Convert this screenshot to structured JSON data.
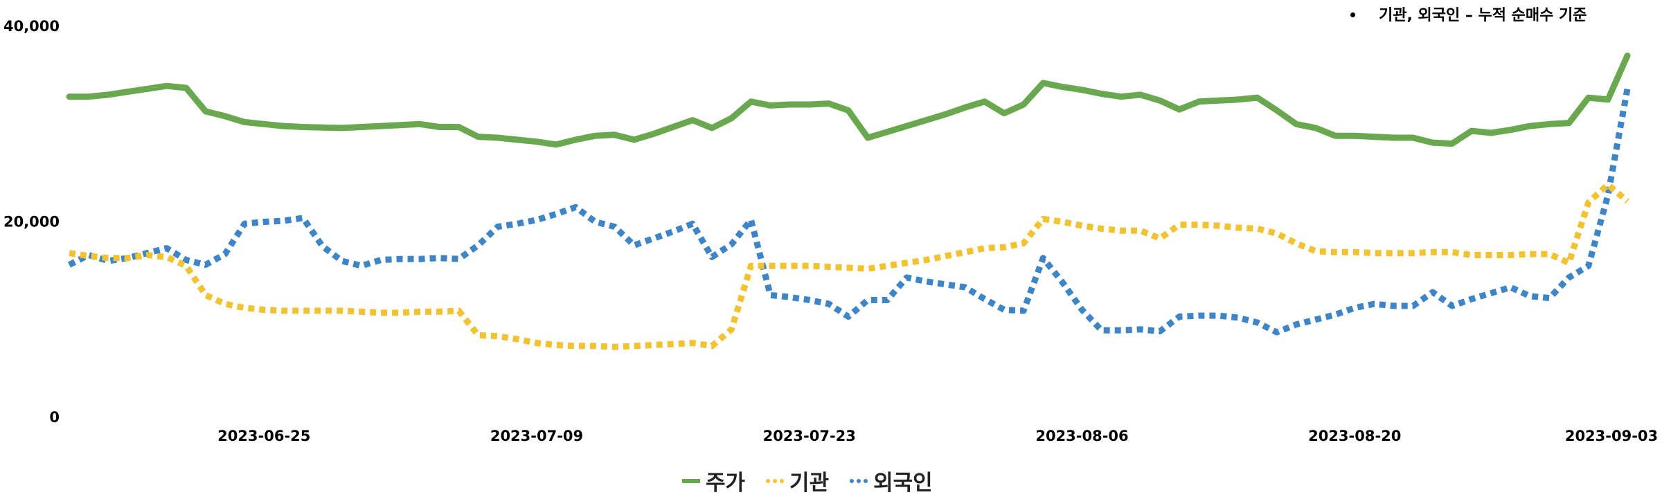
{
  "chart_data": {
    "type": "line",
    "annotation": "기관, 외국인 – 누적 순매수 기준",
    "ylim": [
      0,
      40000
    ],
    "y_ticks": [
      "0",
      "20,000",
      "40,000"
    ],
    "x_ticks": [
      "2023-06-25",
      "2023-07-09",
      "2023-07-23",
      "2023-08-06",
      "2023-08-20",
      "2023-09-03"
    ],
    "x_range": [
      "2023-06-15",
      "2023-09-03"
    ],
    "legend_position": "bottom",
    "x": [
      "2023-06-15",
      "2023-06-16",
      "2023-06-17",
      "2023-06-18",
      "2023-06-19",
      "2023-06-20",
      "2023-06-21",
      "2023-06-22",
      "2023-06-23",
      "2023-06-24",
      "2023-06-25",
      "2023-06-26",
      "2023-06-27",
      "2023-06-28",
      "2023-06-29",
      "2023-06-30",
      "2023-07-01",
      "2023-07-02",
      "2023-07-03",
      "2023-07-04",
      "2023-07-05",
      "2023-07-06",
      "2023-07-07",
      "2023-07-08",
      "2023-07-09",
      "2023-07-10",
      "2023-07-11",
      "2023-07-12",
      "2023-07-13",
      "2023-07-14",
      "2023-07-15",
      "2023-07-16",
      "2023-07-17",
      "2023-07-18",
      "2023-07-19",
      "2023-07-20",
      "2023-07-21",
      "2023-07-22",
      "2023-07-23",
      "2023-07-24",
      "2023-07-25",
      "2023-07-26",
      "2023-07-27",
      "2023-07-28",
      "2023-07-29",
      "2023-07-30",
      "2023-07-31",
      "2023-08-01",
      "2023-08-02",
      "2023-08-03",
      "2023-08-04",
      "2023-08-05",
      "2023-08-06",
      "2023-08-07",
      "2023-08-08",
      "2023-08-09",
      "2023-08-10",
      "2023-08-11",
      "2023-08-12",
      "2023-08-13",
      "2023-08-14",
      "2023-08-15",
      "2023-08-16",
      "2023-08-17",
      "2023-08-18",
      "2023-08-19",
      "2023-08-20",
      "2023-08-21",
      "2023-08-22",
      "2023-08-23",
      "2023-08-24",
      "2023-08-25",
      "2023-08-26",
      "2023-08-27",
      "2023-08-28",
      "2023-08-29",
      "2023-08-30",
      "2023-08-31",
      "2023-09-01",
      "2023-09-02",
      "2023-09-03"
    ],
    "series": [
      {
        "name": "주가",
        "color": "#6aa84f",
        "dash": "solid",
        "values": [
          32800,
          32800,
          33000,
          33300,
          33600,
          33900,
          33700,
          31300,
          30800,
          30200,
          30000,
          29800,
          29700,
          29650,
          29600,
          29700,
          29800,
          29900,
          30000,
          29700,
          29700,
          28700,
          28600,
          28400,
          28200,
          27900,
          28400,
          28800,
          28900,
          28400,
          29000,
          29700,
          30400,
          29600,
          30600,
          32300,
          31900,
          32000,
          32000,
          32100,
          31400,
          28600,
          29200,
          29800,
          30400,
          31000,
          31700,
          32300,
          31100,
          32000,
          34200,
          33800,
          33500,
          33100,
          32800,
          33000,
          32400,
          31500,
          32300,
          32400,
          32500,
          32700,
          31400,
          30000,
          29600,
          28800,
          28800,
          28700,
          28600,
          28600,
          28100,
          28000,
          29300,
          29100,
          29400,
          29800,
          30000,
          30100,
          32700,
          32500,
          37000
        ]
      },
      {
        "name": "기관",
        "color": "#f1c232",
        "dash": "dot",
        "values": [
          16800,
          16500,
          16300,
          16300,
          16600,
          16400,
          15500,
          12500,
          11600,
          11200,
          11000,
          10900,
          10900,
          10900,
          10900,
          10800,
          10700,
          10700,
          10800,
          10800,
          10900,
          8400,
          8300,
          8000,
          7600,
          7400,
          7300,
          7300,
          7200,
          7300,
          7400,
          7500,
          7600,
          7300,
          9000,
          15500,
          15500,
          15500,
          15500,
          15400,
          15300,
          15200,
          15500,
          15800,
          16100,
          16500,
          16900,
          17300,
          17400,
          17800,
          20300,
          20000,
          19600,
          19300,
          19100,
          19100,
          18300,
          19700,
          19700,
          19600,
          19400,
          19300,
          18800,
          17800,
          17000,
          16900,
          16900,
          16800,
          16800,
          16800,
          16900,
          16900,
          16600,
          16600,
          16600,
          16700,
          16700,
          15800,
          22000,
          23800,
          22100
        ]
      },
      {
        "name": "외국인",
        "color": "#3d85c6",
        "dash": "dot",
        "values": [
          15600,
          16600,
          16000,
          16300,
          16800,
          17300,
          16100,
          15600,
          16700,
          19800,
          20000,
          20100,
          20400,
          17500,
          16000,
          15500,
          16100,
          16200,
          16200,
          16300,
          16200,
          17600,
          19500,
          19800,
          20200,
          20800,
          21500,
          20000,
          19500,
          17600,
          18300,
          19000,
          19800,
          16400,
          17700,
          20200,
          12500,
          12300,
          12000,
          11600,
          10300,
          12000,
          12000,
          14300,
          13900,
          13600,
          13300,
          12100,
          11000,
          10900,
          16300,
          13800,
          11000,
          8900,
          8900,
          9000,
          8800,
          10300,
          10400,
          10400,
          10200,
          9700,
          8700,
          9500,
          10000,
          10500,
          11200,
          11600,
          11400,
          11400,
          12800,
          11400,
          12100,
          12700,
          13300,
          12400,
          12200,
          14300,
          15500,
          22700,
          33600
        ]
      }
    ]
  }
}
